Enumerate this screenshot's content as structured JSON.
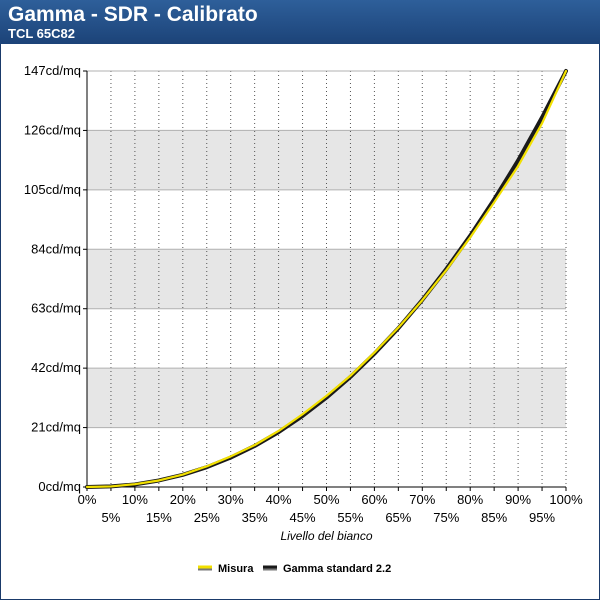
{
  "header": {
    "title": "Gamma - SDR - Calibrato",
    "subtitle": "TCL 65C82"
  },
  "colors": {
    "header_bg": "#1f4a82",
    "band": "#e6e6e6",
    "measured": "#f2e000",
    "reference": "#1a1a1a"
  },
  "chart_data": {
    "type": "line",
    "title": "Gamma - SDR - Calibrato",
    "subtitle": "TCL 65C82",
    "xlabel": "Livello del bianco",
    "ylabel": "",
    "x_unit": "%",
    "y_unit": "cd/mq",
    "xlim": [
      0,
      100
    ],
    "ylim": [
      0,
      147
    ],
    "x": [
      0,
      5,
      10,
      15,
      20,
      25,
      30,
      35,
      40,
      45,
      50,
      55,
      60,
      65,
      70,
      75,
      80,
      85,
      90,
      95,
      100
    ],
    "x_tick_labels": [
      "0%",
      "5%",
      "10%",
      "15%",
      "20%",
      "25%",
      "30%",
      "35%",
      "40%",
      "45%",
      "50%",
      "55%",
      "60%",
      "65%",
      "70%",
      "75%",
      "80%",
      "85%",
      "90%",
      "95%",
      "100%"
    ],
    "y_ticks": [
      0,
      21,
      42,
      63,
      84,
      105,
      126,
      147
    ],
    "y_tick_labels": [
      "0cd/mq",
      "21cd/mq",
      "42cd/mq",
      "63cd/mq",
      "84cd/mq",
      "105cd/mq",
      "126cd/mq",
      "147cd/mq"
    ],
    "grid": true,
    "legend_position": "bottom-center",
    "series": [
      {
        "name": "Misura",
        "color": "#f2e000",
        "values": [
          0,
          0.2,
          1.0,
          2.3,
          4.4,
          7.3,
          10.8,
          14.8,
          19.8,
          25.7,
          32.2,
          39.3,
          47.5,
          56.3,
          66.0,
          76.6,
          88.2,
          100.6,
          113.4,
          128.5,
          147.0
        ]
      },
      {
        "name": "Gamma standard 2.2",
        "color": "#1a1a1a",
        "values": [
          0,
          0.2,
          0.9,
          2.3,
          4.3,
          7.0,
          10.4,
          14.5,
          19.4,
          25.1,
          31.6,
          38.9,
          47.1,
          56.1,
          66.1,
          77.0,
          88.8,
          101.6,
          115.4,
          130.6,
          147.0
        ]
      }
    ]
  }
}
